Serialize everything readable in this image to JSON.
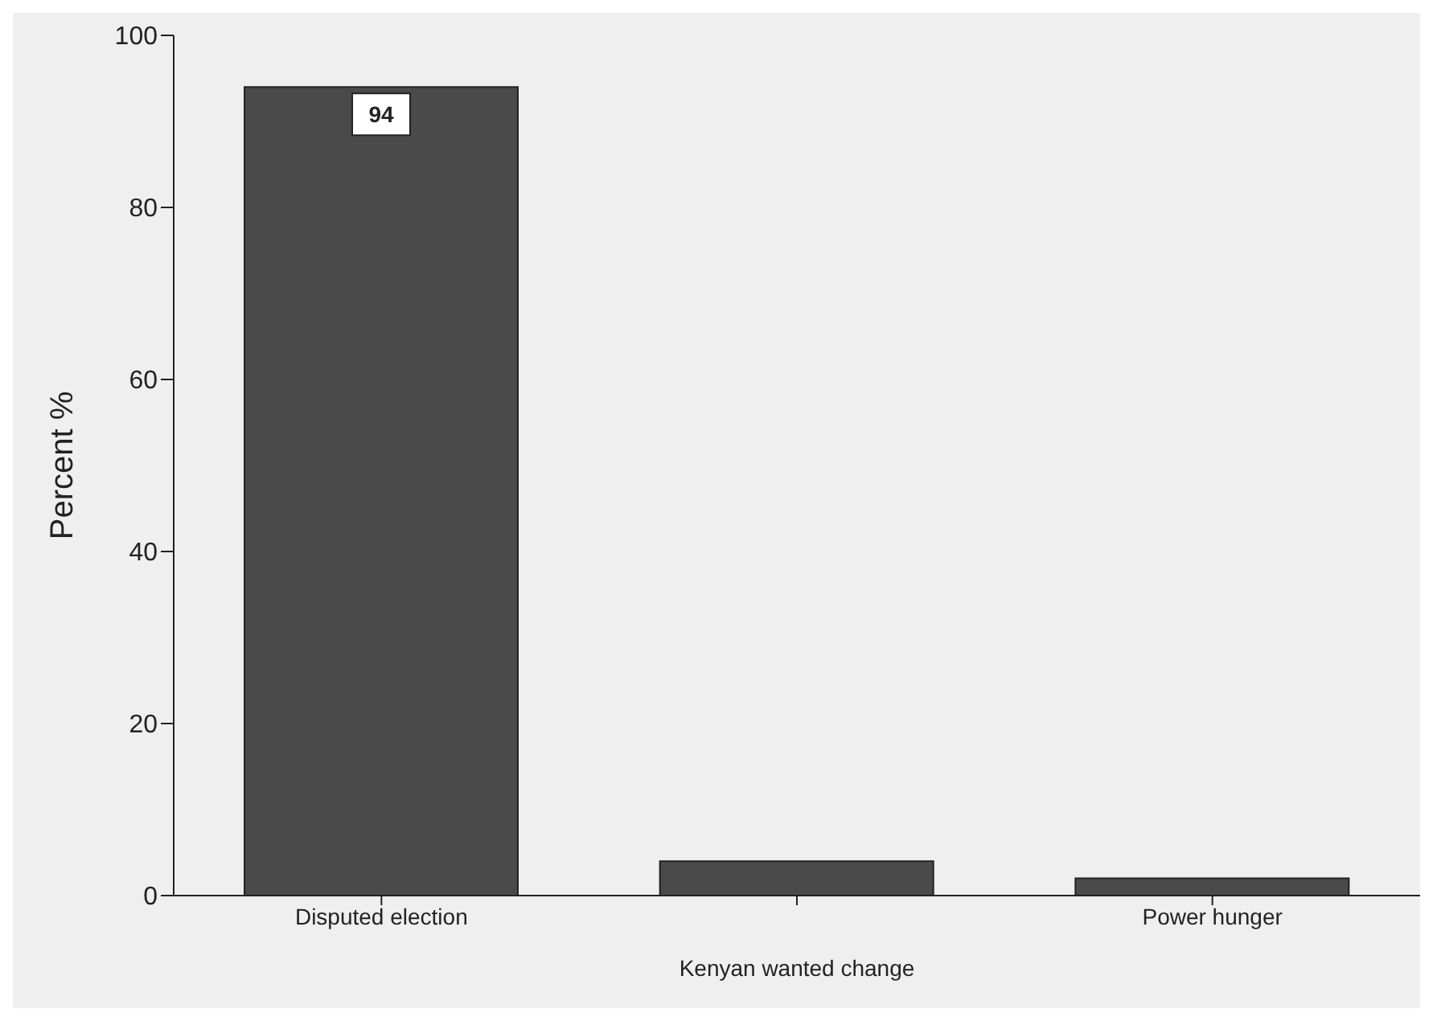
{
  "chart_data": {
    "type": "bar",
    "xlabel": "Kenyan wanted change",
    "ylabel": "Percent %",
    "categories": [
      "Disputed election",
      null,
      "Power hunger"
    ],
    "values": [
      94,
      4,
      2
    ],
    "value_labels": [
      "94",
      null,
      null
    ],
    "color": "#4a4a4a",
    "ylim": [
      0,
      100
    ],
    "yticks": [
      0,
      20,
      40,
      60,
      80,
      100
    ],
    "grid": false
  }
}
